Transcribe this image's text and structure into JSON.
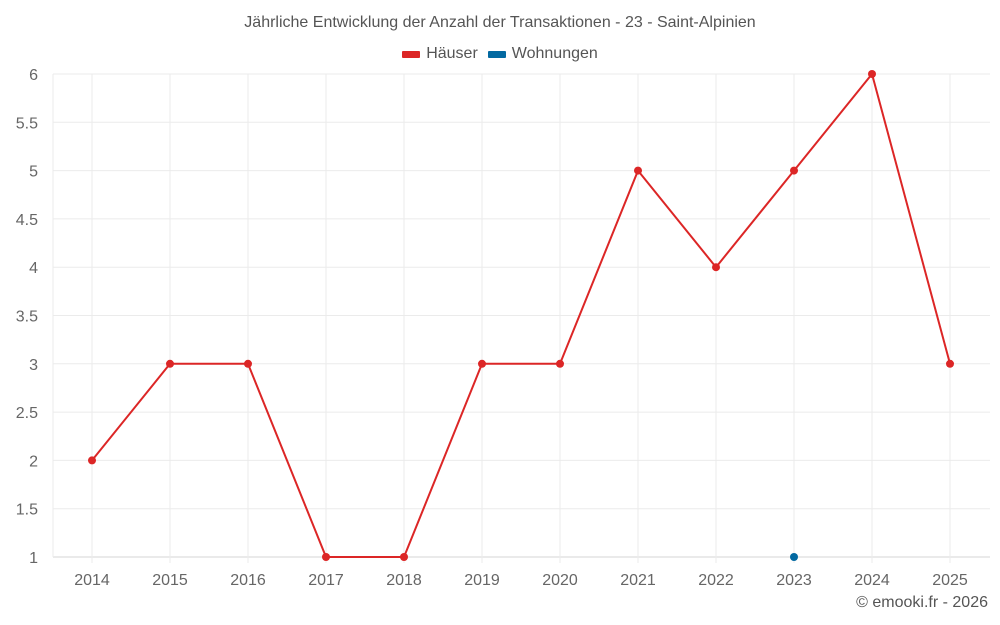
{
  "title": "Jährliche Entwicklung der Anzahl der Transaktionen - 23 - Saint-Alpinien",
  "legend": [
    {
      "label": "Häuser",
      "color": "#dc2626"
    },
    {
      "label": "Wohnungen",
      "color": "#0369a1"
    }
  ],
  "footer": "© emooki.fr - 2026",
  "chart_data": {
    "type": "line",
    "title": "Jährliche Entwicklung der Anzahl der Transaktionen - 23 - Saint-Alpinien",
    "xlabel": "",
    "ylabel": "",
    "categories": [
      "2014",
      "2015",
      "2016",
      "2017",
      "2018",
      "2019",
      "2020",
      "2021",
      "2022",
      "2023",
      "2024",
      "2025"
    ],
    "series": [
      {
        "name": "Häuser",
        "color": "#dc2626",
        "values": [
          2,
          3,
          3,
          1,
          1,
          3,
          3,
          5,
          4,
          5,
          6,
          3
        ]
      },
      {
        "name": "Wohnungen",
        "color": "#0369a1",
        "values": [
          null,
          null,
          null,
          null,
          null,
          null,
          null,
          null,
          null,
          1,
          null,
          null
        ]
      }
    ],
    "yticks": [
      "1",
      "1.5",
      "2",
      "2.5",
      "3",
      "3.5",
      "4",
      "4.5",
      "5",
      "5.5",
      "6"
    ],
    "ylim": [
      1,
      6
    ],
    "grid": true,
    "legend_position": "top"
  }
}
